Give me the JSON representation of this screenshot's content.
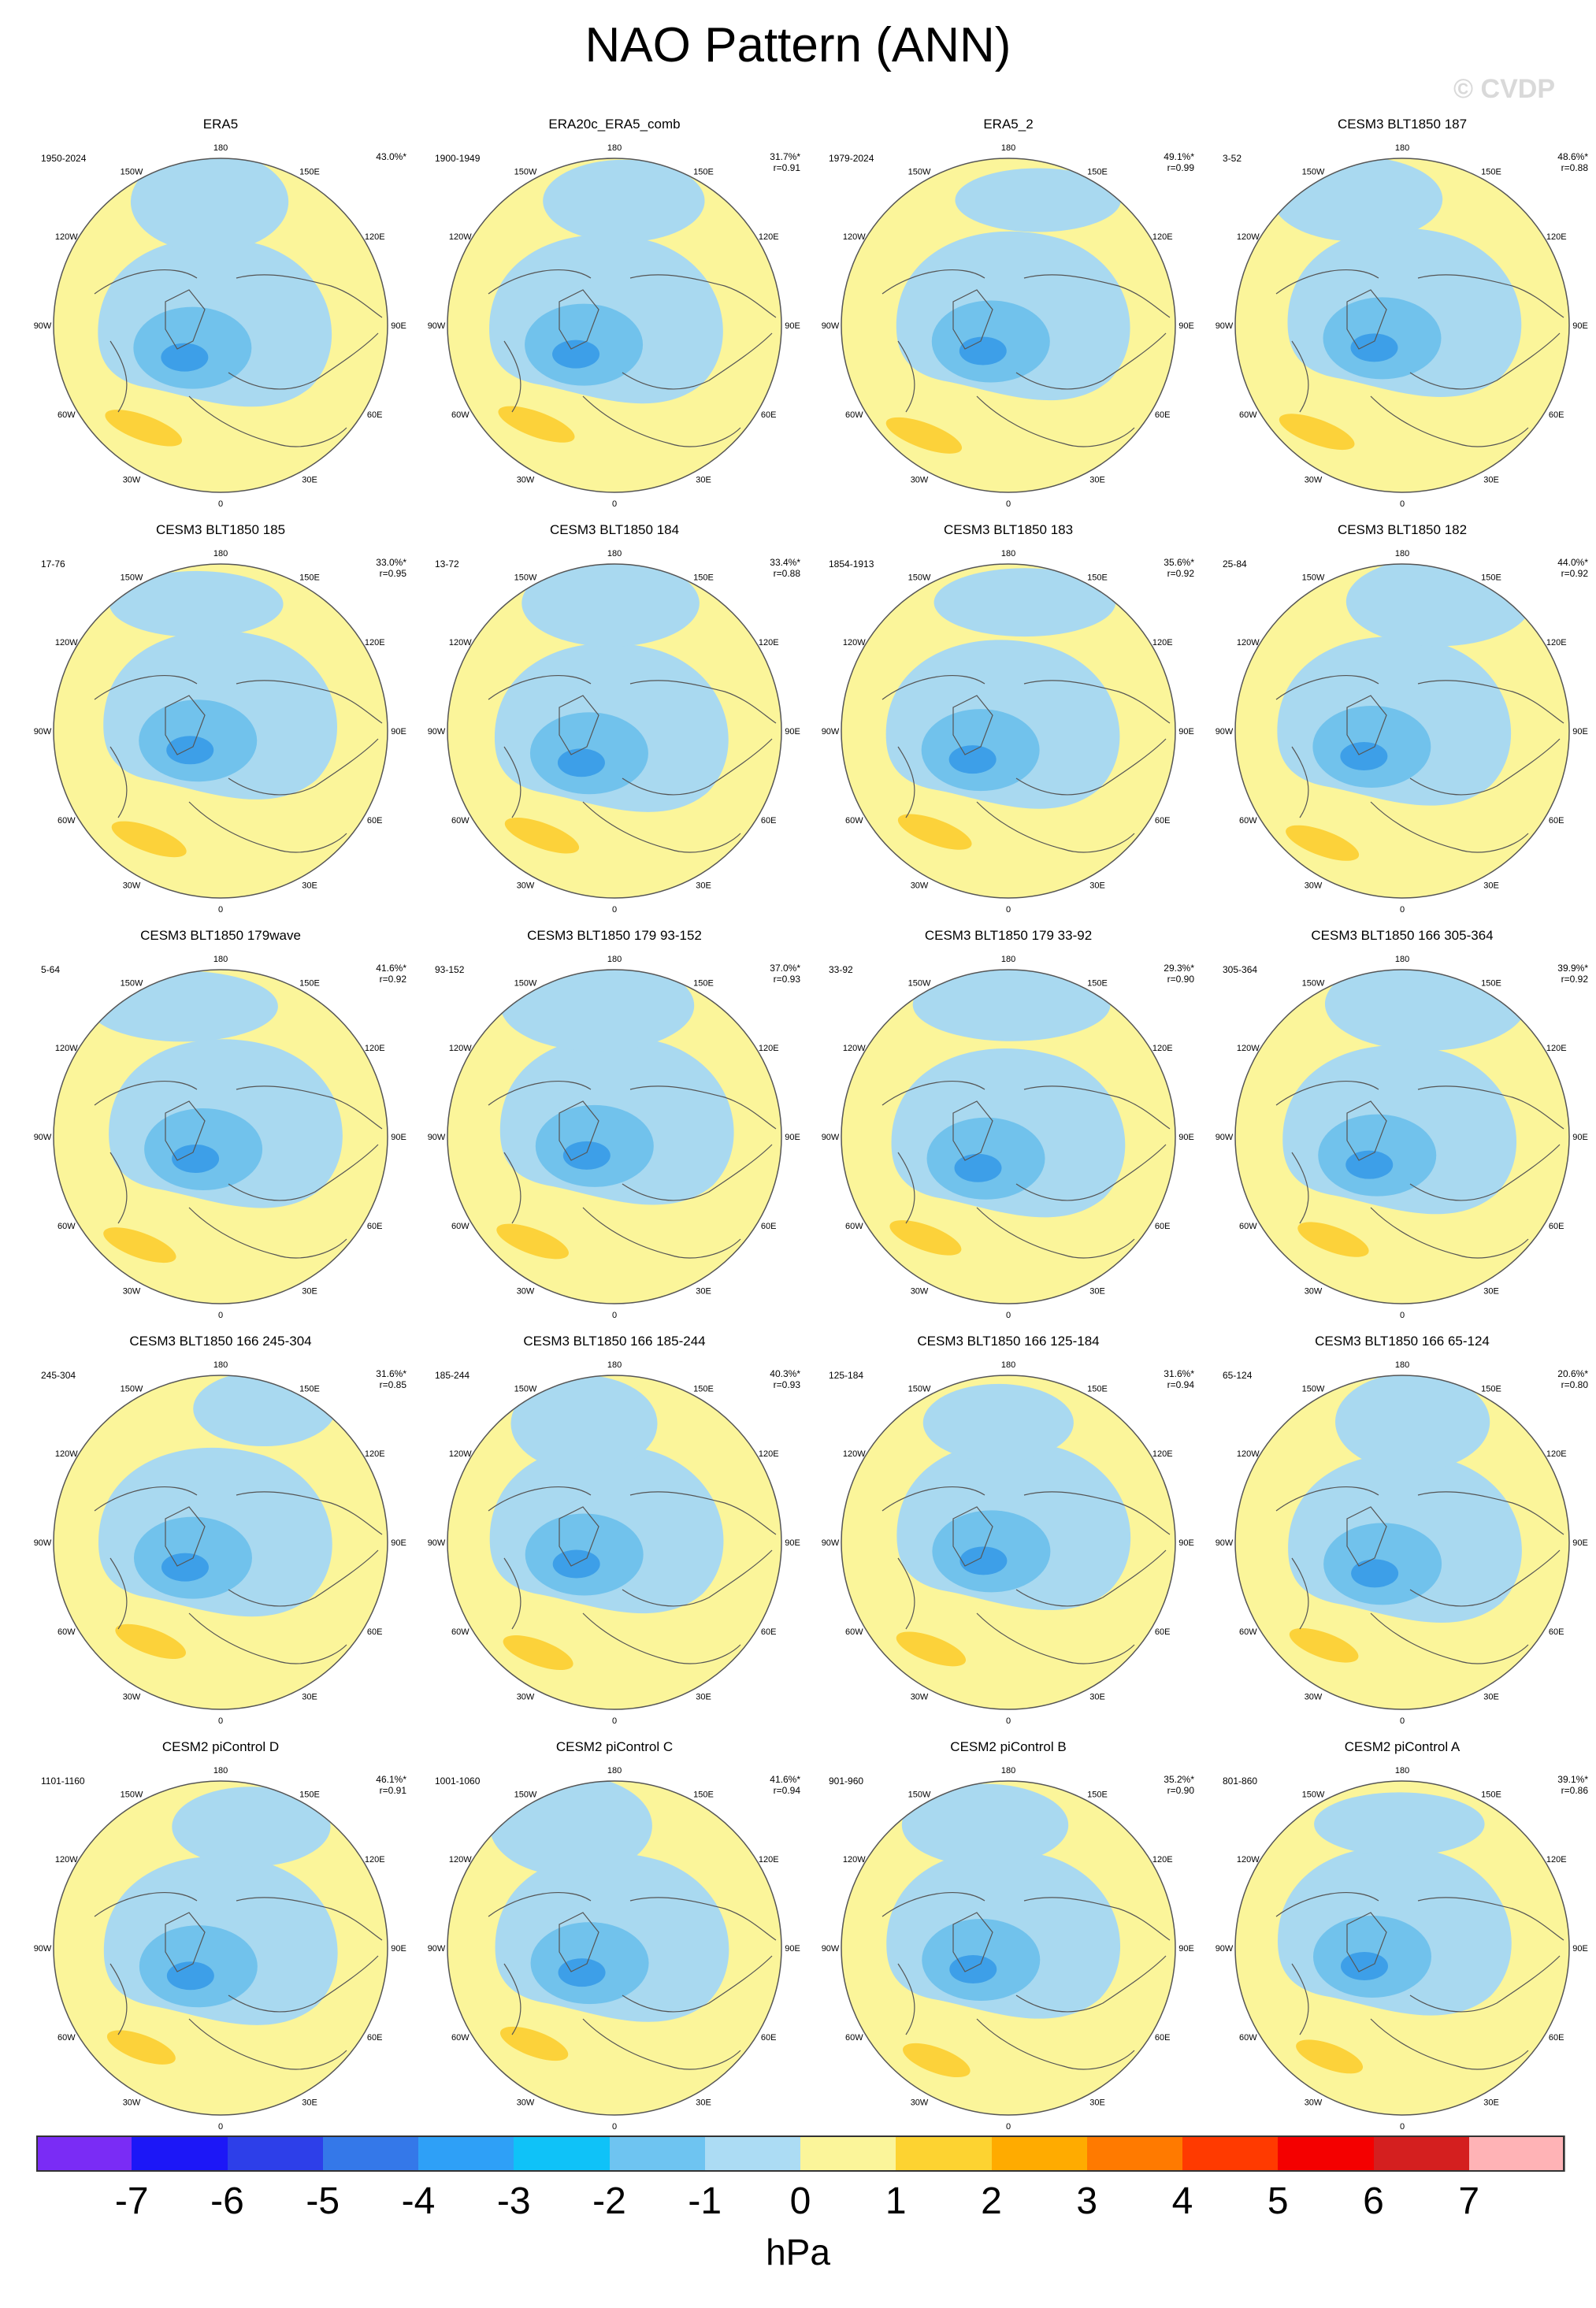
{
  "title": "NAO Pattern (ANN)",
  "watermark": "© CVDP",
  "units": "hPa",
  "lon_labels": [
    "180",
    "150E",
    "120E",
    "90E",
    "60E",
    "30E",
    "0",
    "30W",
    "60W",
    "90W",
    "120W",
    "150W"
  ],
  "colors": {
    "ocean_neg1": "#a9d9f0",
    "neg2": "#71c2ec",
    "neg3": "#3d9fe8",
    "neg4": "#2c7fe0",
    "pos1": "#fbf59a",
    "pos2": "#fcd23a",
    "coast": "#555555"
  },
  "colorbar": {
    "levels": [
      "-7",
      "-6",
      "-5",
      "-4",
      "-3",
      "-2",
      "-1",
      "0",
      "1",
      "2",
      "3",
      "4",
      "5",
      "6",
      "7"
    ],
    "colors": [
      "#7a2cf5",
      "#1c17f7",
      "#2d3fe9",
      "#3478e9",
      "#2ea0f7",
      "#0fc2f8",
      "#6ec4f1",
      "#acdcf4",
      "#fbf59a",
      "#fdd331",
      "#ffab00",
      "#ff7a00",
      "#ff3a00",
      "#f40000",
      "#d41f1f",
      "#ffb3b6"
    ]
  },
  "chart_data": {
    "type": "map",
    "panels": [
      {
        "title": "ERA5",
        "range": "1950-2024",
        "pct": "43.0%*",
        "r": ""
      },
      {
        "title": "ERA20c_ERA5_comb",
        "range": "1900-1949",
        "pct": "31.7%*",
        "r": "r=0.91"
      },
      {
        "title": "ERA5_2",
        "range": "1979-2024",
        "pct": "49.1%*",
        "r": "r=0.99"
      },
      {
        "title": "CESM3 BLT1850 187",
        "range": "3-52",
        "pct": "48.6%*",
        "r": "r=0.88"
      },
      {
        "title": "CESM3 BLT1850 185",
        "range": "17-76",
        "pct": "33.0%*",
        "r": "r=0.95"
      },
      {
        "title": "CESM3 BLT1850 184",
        "range": "13-72",
        "pct": "33.4%*",
        "r": "r=0.88"
      },
      {
        "title": "CESM3 BLT1850 183",
        "range": "1854-1913",
        "pct": "35.6%*",
        "r": "r=0.92"
      },
      {
        "title": "CESM3 BLT1850 182",
        "range": "25-84",
        "pct": "44.0%*",
        "r": "r=0.92"
      },
      {
        "title": "CESM3 BLT1850 179wave",
        "range": "5-64",
        "pct": "41.6%*",
        "r": "r=0.92"
      },
      {
        "title": "CESM3 BLT1850 179 93-152",
        "range": "93-152",
        "pct": "37.0%*",
        "r": "r=0.93"
      },
      {
        "title": "CESM3 BLT1850 179 33-92",
        "range": "33-92",
        "pct": "29.3%*",
        "r": "r=0.90"
      },
      {
        "title": "CESM3 BLT1850 166 305-364",
        "range": "305-364",
        "pct": "39.9%*",
        "r": "r=0.92"
      },
      {
        "title": "CESM3 BLT1850 166 245-304",
        "range": "245-304",
        "pct": "31.6%*",
        "r": "r=0.85"
      },
      {
        "title": "CESM3 BLT1850 166 185-244",
        "range": "185-244",
        "pct": "40.3%*",
        "r": "r=0.93"
      },
      {
        "title": "CESM3 BLT1850 166 125-184",
        "range": "125-184",
        "pct": "31.6%*",
        "r": "r=0.94"
      },
      {
        "title": "CESM3 BLT1850 166 65-124",
        "range": "65-124",
        "pct": "20.6%*",
        "r": "r=0.80"
      },
      {
        "title": "CESM2 piControl D",
        "range": "1101-1160",
        "pct": "46.1%*",
        "r": "r=0.91"
      },
      {
        "title": "CESM2 piControl C",
        "range": "1001-1060",
        "pct": "41.6%*",
        "r": "r=0.94"
      },
      {
        "title": "CESM2 piControl B",
        "range": "901-960",
        "pct": "35.2%*",
        "r": "r=0.90"
      },
      {
        "title": "CESM2 piControl A",
        "range": "801-860",
        "pct": "39.1%*",
        "r": "r=0.86"
      }
    ]
  }
}
